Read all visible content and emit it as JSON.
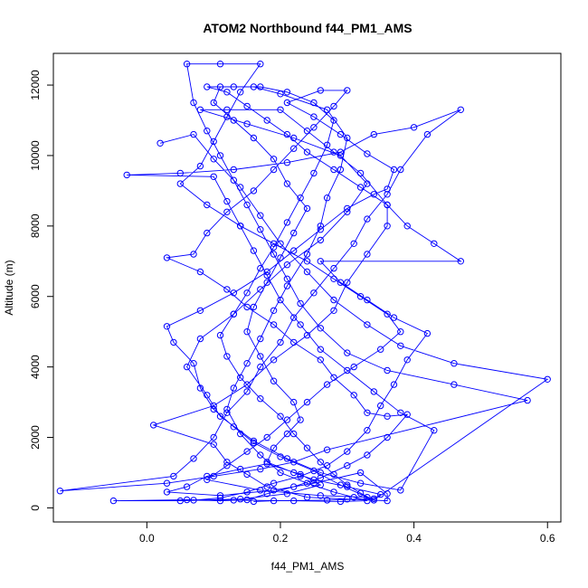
{
  "chart_data": {
    "type": "line",
    "title": "ATOM2 Northbound f44_PM1_AMS",
    "xlabel": "f44_PM1_AMS",
    "ylabel": "Altitude (m)",
    "xlim": [
      -0.14,
      0.62
    ],
    "ylim": [
      -400,
      12900
    ],
    "x_ticks": [
      0.0,
      0.2,
      0.4,
      0.6
    ],
    "x_tick_labels": [
      "0.0",
      "0.2",
      "0.4",
      "0.6"
    ],
    "y_ticks": [
      0,
      2000,
      4000,
      6000,
      8000,
      10000,
      12000
    ],
    "y_tick_labels": [
      "0",
      "2000",
      "4000",
      "6000",
      "8000",
      "10000",
      "12000"
    ],
    "grid": false,
    "marker": "open-circle",
    "series_color": "#0000ff",
    "series": [
      {
        "points": [
          [
            0.16,
            180
          ],
          [
            0.19,
            200
          ],
          [
            0.27,
            220
          ],
          [
            0.34,
            260
          ],
          [
            0.35,
            380
          ],
          [
            0.3,
            600
          ],
          [
            0.25,
            800
          ],
          [
            0.22,
            1000
          ],
          [
            0.18,
            1300
          ],
          [
            0.19,
            1700
          ],
          [
            0.21,
            2100
          ],
          [
            0.23,
            2500
          ],
          [
            0.22,
            3000
          ],
          [
            0.19,
            3600
          ],
          [
            0.17,
            4300
          ],
          [
            0.15,
            5000
          ],
          [
            0.16,
            5700
          ],
          [
            0.18,
            6400
          ],
          [
            0.2,
            7100
          ],
          [
            0.22,
            7800
          ],
          [
            0.24,
            8500
          ],
          [
            0.21,
            9200
          ],
          [
            0.19,
            9900
          ],
          [
            0.16,
            10500
          ],
          [
            0.13,
            11000
          ],
          [
            0.1,
            11500
          ],
          [
            0.11,
            11950
          ],
          [
            0.16,
            11950
          ],
          [
            0.2,
            11750
          ],
          [
            0.27,
            11300
          ],
          [
            0.3,
            10500
          ],
          [
            0.29,
            9600
          ],
          [
            0.27,
            8800
          ],
          [
            0.26,
            8000
          ],
          [
            0.24,
            7200
          ],
          [
            0.21,
            6300
          ],
          [
            0.19,
            5600
          ],
          [
            0.17,
            4800
          ],
          [
            0.15,
            4100
          ],
          [
            0.13,
            3400
          ],
          [
            0.12,
            2800
          ],
          [
            0.14,
            2100
          ],
          [
            0.17,
            1500
          ],
          [
            0.2,
            1000
          ],
          [
            0.24,
            700
          ],
          [
            0.28,
            450
          ],
          [
            0.31,
            300
          ],
          [
            0.33,
            200
          ],
          [
            0.29,
            180
          ],
          [
            0.22,
            200
          ],
          [
            0.13,
            220
          ],
          [
            0.06,
            230
          ],
          [
            -0.05,
            200
          ],
          [
            0.05,
            200
          ],
          [
            0.14,
            250
          ],
          [
            0.21,
            400
          ],
          [
            0.26,
            650
          ],
          [
            0.23,
            950
          ],
          [
            0.18,
            1250
          ],
          [
            0.14,
            1100
          ],
          [
            0.09,
            900
          ],
          [
            0.06,
            600
          ],
          [
            0.03,
            450
          ],
          [
            0.11,
            350
          ],
          [
            0.19,
            500
          ],
          [
            0.25,
            700
          ],
          [
            0.32,
            1000
          ],
          [
            0.36,
            400
          ],
          [
            0.36,
            200
          ],
          [
            0.3,
            250
          ],
          [
            0.24,
            300
          ],
          [
            0.18,
            600
          ],
          [
            0.15,
            950
          ],
          [
            0.12,
            1300
          ],
          [
            0.1,
            1800
          ],
          [
            0.01,
            2350
          ],
          [
            0.1,
            2900
          ],
          [
            0.15,
            3500
          ],
          [
            0.19,
            4200
          ],
          [
            0.24,
            4900
          ],
          [
            0.28,
            5600
          ],
          [
            0.3,
            6400
          ],
          [
            0.33,
            7200
          ],
          [
            0.36,
            8000
          ],
          [
            0.36,
            8600
          ],
          [
            0.32,
            9500
          ],
          [
            0.28,
            10100
          ],
          [
            0.24,
            10700
          ],
          [
            0.2,
            11300
          ],
          [
            0.12,
            11300
          ],
          [
            0.08,
            11300
          ],
          [
            0.15,
            10900
          ],
          [
            0.22,
            10500
          ],
          [
            0.29,
            10000
          ],
          [
            0.33,
            9200
          ],
          [
            0.3,
            8400
          ],
          [
            0.26,
            7600
          ],
          [
            0.21,
            6900
          ],
          [
            0.17,
            6200
          ],
          [
            0.13,
            5500
          ],
          [
            0.08,
            4800
          ],
          [
            0.06,
            4000
          ],
          [
            0.09,
            3200
          ],
          [
            0.11,
            2600
          ],
          [
            0.16,
            1900
          ],
          [
            0.21,
            1400
          ],
          [
            0.26,
            1000
          ],
          [
            0.32,
            700
          ],
          [
            0.38,
            500
          ],
          [
            0.43,
            2200
          ],
          [
            0.38,
            2700
          ],
          [
            0.34,
            3300
          ],
          [
            0.3,
            3900
          ],
          [
            0.26,
            4500
          ],
          [
            0.23,
            5200
          ],
          [
            0.2,
            5900
          ],
          [
            0.18,
            6600
          ],
          [
            0.16,
            7300
          ],
          [
            0.14,
            8000
          ],
          [
            0.12,
            8700
          ],
          [
            0.1,
            9400
          ],
          [
            -0.03,
            9450
          ],
          [
            0.05,
            9500
          ],
          [
            0.13,
            9600
          ],
          [
            0.21,
            9800
          ],
          [
            0.29,
            10100
          ],
          [
            0.34,
            10600
          ],
          [
            0.4,
            10800
          ],
          [
            0.47,
            11300
          ],
          [
            0.42,
            10600
          ],
          [
            0.38,
            9600
          ],
          [
            0.36,
            8900
          ],
          [
            0.33,
            8200
          ],
          [
            0.31,
            7500
          ],
          [
            0.28,
            6800
          ],
          [
            0.25,
            6100
          ],
          [
            0.22,
            5400
          ],
          [
            0.2,
            4700
          ],
          [
            0.17,
            4000
          ],
          [
            0.15,
            3300
          ],
          [
            0.12,
            2700
          ],
          [
            0.1,
            2000
          ],
          [
            0.07,
            1400
          ],
          [
            0.04,
            900
          ],
          [
            -0.13,
            480
          ],
          [
            0.03,
            700
          ],
          [
            0.1,
            900
          ],
          [
            0.17,
            1100
          ],
          [
            0.22,
            1300
          ],
          [
            0.27,
            1650
          ],
          [
            0.57,
            3050
          ],
          [
            0.46,
            3500
          ],
          [
            0.36,
            3900
          ],
          [
            0.3,
            4400
          ],
          [
            0.26,
            5100
          ],
          [
            0.23,
            5800
          ],
          [
            0.21,
            6500
          ],
          [
            0.19,
            7200
          ],
          [
            0.17,
            7900
          ],
          [
            0.15,
            8600
          ],
          [
            0.13,
            9300
          ],
          [
            0.11,
            10000
          ],
          [
            0.09,
            10700
          ],
          [
            0.07,
            11500
          ],
          [
            0.06,
            12600
          ],
          [
            0.11,
            12600
          ],
          [
            0.17,
            12600
          ],
          [
            0.14,
            11800
          ],
          [
            0.12,
            11100
          ],
          [
            0.1,
            10400
          ],
          [
            0.08,
            9700
          ],
          [
            0.05,
            9200
          ],
          [
            0.09,
            8600
          ],
          [
            0.14,
            8000
          ],
          [
            0.19,
            7500
          ],
          [
            0.24,
            7000
          ],
          [
            0.28,
            6500
          ],
          [
            0.32,
            6000
          ],
          [
            0.36,
            5500
          ],
          [
            0.38,
            5000
          ],
          [
            0.35,
            4500
          ],
          [
            0.31,
            4000
          ],
          [
            0.27,
            3500
          ],
          [
            0.24,
            3000
          ],
          [
            0.21,
            2500
          ],
          [
            0.18,
            2000
          ],
          [
            0.15,
            1600
          ],
          [
            0.12,
            1200
          ],
          [
            0.09,
            800
          ],
          [
            0.17,
            500
          ],
          [
            0.26,
            350
          ],
          [
            0.33,
            300
          ],
          [
            0.29,
            650
          ],
          [
            0.25,
            1050
          ],
          [
            0.2,
            1450
          ],
          [
            0.16,
            1850
          ],
          [
            0.13,
            2300
          ],
          [
            0.1,
            2800
          ],
          [
            0.08,
            3400
          ],
          [
            0.07,
            4100
          ],
          [
            0.04,
            4700
          ],
          [
            0.03,
            5150
          ],
          [
            0.08,
            5600
          ],
          [
            0.13,
            6100
          ],
          [
            0.18,
            6700
          ],
          [
            0.22,
            7300
          ],
          [
            0.26,
            7900
          ],
          [
            0.3,
            8500
          ],
          [
            0.34,
            8900
          ],
          [
            0.36,
            9050
          ],
          [
            0.37,
            9600
          ],
          [
            0.33,
            10050
          ],
          [
            0.29,
            10600
          ],
          [
            0.25,
            11100
          ],
          [
            0.21,
            11500
          ],
          [
            0.26,
            11850
          ],
          [
            0.3,
            11850
          ],
          [
            0.28,
            11400
          ],
          [
            0.25,
            10800
          ],
          [
            0.22,
            10200
          ],
          [
            0.19,
            9600
          ],
          [
            0.16,
            9000
          ],
          [
            0.12,
            8400
          ],
          [
            0.09,
            7800
          ],
          [
            0.07,
            7200
          ],
          [
            0.03,
            7100
          ],
          [
            0.08,
            6700
          ],
          [
            0.12,
            6200
          ],
          [
            0.15,
            5700
          ],
          [
            0.19,
            5200
          ],
          [
            0.22,
            4700
          ],
          [
            0.26,
            4200
          ],
          [
            0.28,
            3700
          ],
          [
            0.31,
            3200
          ],
          [
            0.33,
            2700
          ],
          [
            0.36,
            2600
          ],
          [
            0.39,
            2650
          ],
          [
            0.36,
            2000
          ],
          [
            0.33,
            1500
          ],
          [
            0.3,
            1200
          ],
          [
            0.26,
            850
          ],
          [
            0.22,
            600
          ],
          [
            0.18,
            400
          ],
          [
            0.15,
            230
          ],
          [
            0.11,
            200
          ],
          [
            0.07,
            220
          ],
          [
            0.11,
            280
          ],
          [
            0.15,
            450
          ],
          [
            0.19,
            700
          ],
          [
            0.23,
            900
          ],
          [
            0.27,
            1200
          ],
          [
            0.3,
            1600
          ],
          [
            0.33,
            2200
          ],
          [
            0.35,
            2900
          ],
          [
            0.37,
            3500
          ],
          [
            0.39,
            4200
          ],
          [
            0.42,
            4950
          ],
          [
            0.37,
            5400
          ],
          [
            0.33,
            5900
          ],
          [
            0.29,
            6400
          ],
          [
            0.26,
            7000
          ],
          [
            0.47,
            7000
          ],
          [
            0.43,
            7500
          ],
          [
            0.39,
            8000
          ],
          [
            0.36,
            8600
          ],
          [
            0.32,
            9100
          ],
          [
            0.28,
            9600
          ],
          [
            0.24,
            10100
          ],
          [
            0.21,
            10600
          ],
          [
            0.18,
            11000
          ],
          [
            0.15,
            11400
          ],
          [
            0.12,
            11800
          ],
          [
            0.09,
            11950
          ],
          [
            0.13,
            11950
          ],
          [
            0.17,
            11950
          ],
          [
            0.21,
            11800
          ],
          [
            0.25,
            11500
          ],
          [
            0.28,
            11000
          ],
          [
            0.27,
            10300
          ],
          [
            0.25,
            9500
          ],
          [
            0.23,
            8800
          ],
          [
            0.21,
            8100
          ],
          [
            0.19,
            7400
          ],
          [
            0.17,
            6800
          ],
          [
            0.15,
            6100
          ],
          [
            0.13,
            5500
          ],
          [
            0.11,
            4900
          ],
          [
            0.12,
            4300
          ],
          [
            0.14,
            3700
          ],
          [
            0.17,
            3100
          ],
          [
            0.2,
            2600
          ],
          [
            0.22,
            2100
          ],
          [
            0.24,
            1700
          ],
          [
            0.26,
            1300
          ],
          [
            0.28,
            950
          ],
          [
            0.3,
            650
          ],
          [
            0.32,
            420
          ],
          [
            0.34,
            220
          ],
          [
            0.6,
            3650
          ],
          [
            0.46,
            4100
          ],
          [
            0.38,
            4600
          ],
          [
            0.33,
            5200
          ],
          [
            0.28,
            5900
          ],
          [
            0.24,
            6700
          ],
          [
            0.2,
            7500
          ],
          [
            0.17,
            8300
          ],
          [
            0.14,
            9100
          ],
          [
            0.1,
            9900
          ],
          [
            0.07,
            10600
          ],
          [
            0.02,
            10350
          ]
        ]
      }
    ]
  }
}
